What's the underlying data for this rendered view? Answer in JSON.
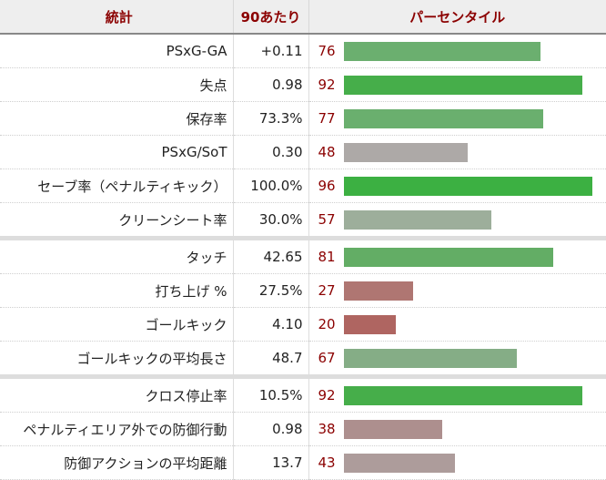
{
  "header": {
    "stat": "統計",
    "per90": "90あたり",
    "percentile": "パーセンタイル"
  },
  "colors": {
    "header_text": "#8b0000",
    "header_bg": "#eeeeee",
    "percentile_text": "#8b0000"
  },
  "rows": [
    {
      "stat": "PSxG-GA",
      "value": "+0.11",
      "percentile": "76",
      "bar_color": "#6baf6f",
      "group_start": false
    },
    {
      "stat": "失点",
      "value": "0.98",
      "percentile": "92",
      "bar_color": "#46ae4a",
      "group_start": false
    },
    {
      "stat": "保存率",
      "value": "73.3%",
      "percentile": "77",
      "bar_color": "#6aaf6e",
      "group_start": false
    },
    {
      "stat": "PSxG/SoT",
      "value": "0.30",
      "percentile": "48",
      "bar_color": "#ada9a7",
      "group_start": false
    },
    {
      "stat": "セーブ率（ペナルティキック）",
      "value": "100.0%",
      "percentile": "96",
      "bar_color": "#3cb042",
      "group_start": false
    },
    {
      "stat": "クリーンシート率",
      "value": "30.0%",
      "percentile": "57",
      "bar_color": "#9dae9b",
      "group_start": false
    },
    {
      "stat": "タッチ",
      "value": "42.65",
      "percentile": "81",
      "bar_color": "#63ad65",
      "group_start": true
    },
    {
      "stat": "打ち上げ %",
      "value": "27.5%",
      "percentile": "27",
      "bar_color": "#af7672",
      "group_start": false
    },
    {
      "stat": "ゴールキック",
      "value": "4.10",
      "percentile": "20",
      "bar_color": "#af6561",
      "group_start": false
    },
    {
      "stat": "ゴールキックの平均長さ",
      "value": "48.7",
      "percentile": "67",
      "bar_color": "#85ad86",
      "group_start": false
    },
    {
      "stat": "クロス停止率",
      "value": "10.5%",
      "percentile": "92",
      "bar_color": "#46ae4a",
      "group_start": true
    },
    {
      "stat": "ペナルティエリア外での防御行動",
      "value": "0.98",
      "percentile": "38",
      "bar_color": "#ad8f8e",
      "group_start": false
    },
    {
      "stat": "防御アクションの平均距離",
      "value": "13.7",
      "percentile": "43",
      "bar_color": "#ad9c9b",
      "group_start": false
    }
  ],
  "chart_data": {
    "type": "bar",
    "orientation": "horizontal",
    "title": "",
    "columns": [
      "統計",
      "90あたり",
      "パーセンタイル"
    ],
    "categories": [
      "PSxG-GA",
      "失点",
      "保存率",
      "PSxG/SoT",
      "セーブ率（ペナルティキック）",
      "クリーンシート率",
      "タッチ",
      "打ち上げ %",
      "ゴールキック",
      "ゴールキックの平均長さ",
      "クロス停止率",
      "ペナルティエリア外での防御行動",
      "防御アクションの平均距離"
    ],
    "per90": [
      "+0.11",
      "0.98",
      "73.3%",
      "0.30",
      "100.0%",
      "30.0%",
      "42.65",
      "27.5%",
      "4.10",
      "48.7",
      "10.5%",
      "0.98",
      "13.7"
    ],
    "values": [
      76,
      92,
      77,
      48,
      96,
      57,
      81,
      27,
      20,
      67,
      92,
      38,
      43
    ],
    "xlim": [
      0,
      100
    ],
    "groups": [
      [
        "PSxG-GA",
        "失点",
        "保存率",
        "PSxG/SoT",
        "セーブ率（ペナルティキック）",
        "クリーンシート率"
      ],
      [
        "タッチ",
        "打ち上げ %",
        "ゴールキック",
        "ゴールキックの平均長さ"
      ],
      [
        "クロス停止率",
        "ペナルティエリア外での防御行動",
        "防御アクションの平均距離"
      ]
    ],
    "grid": false,
    "legend": null
  }
}
